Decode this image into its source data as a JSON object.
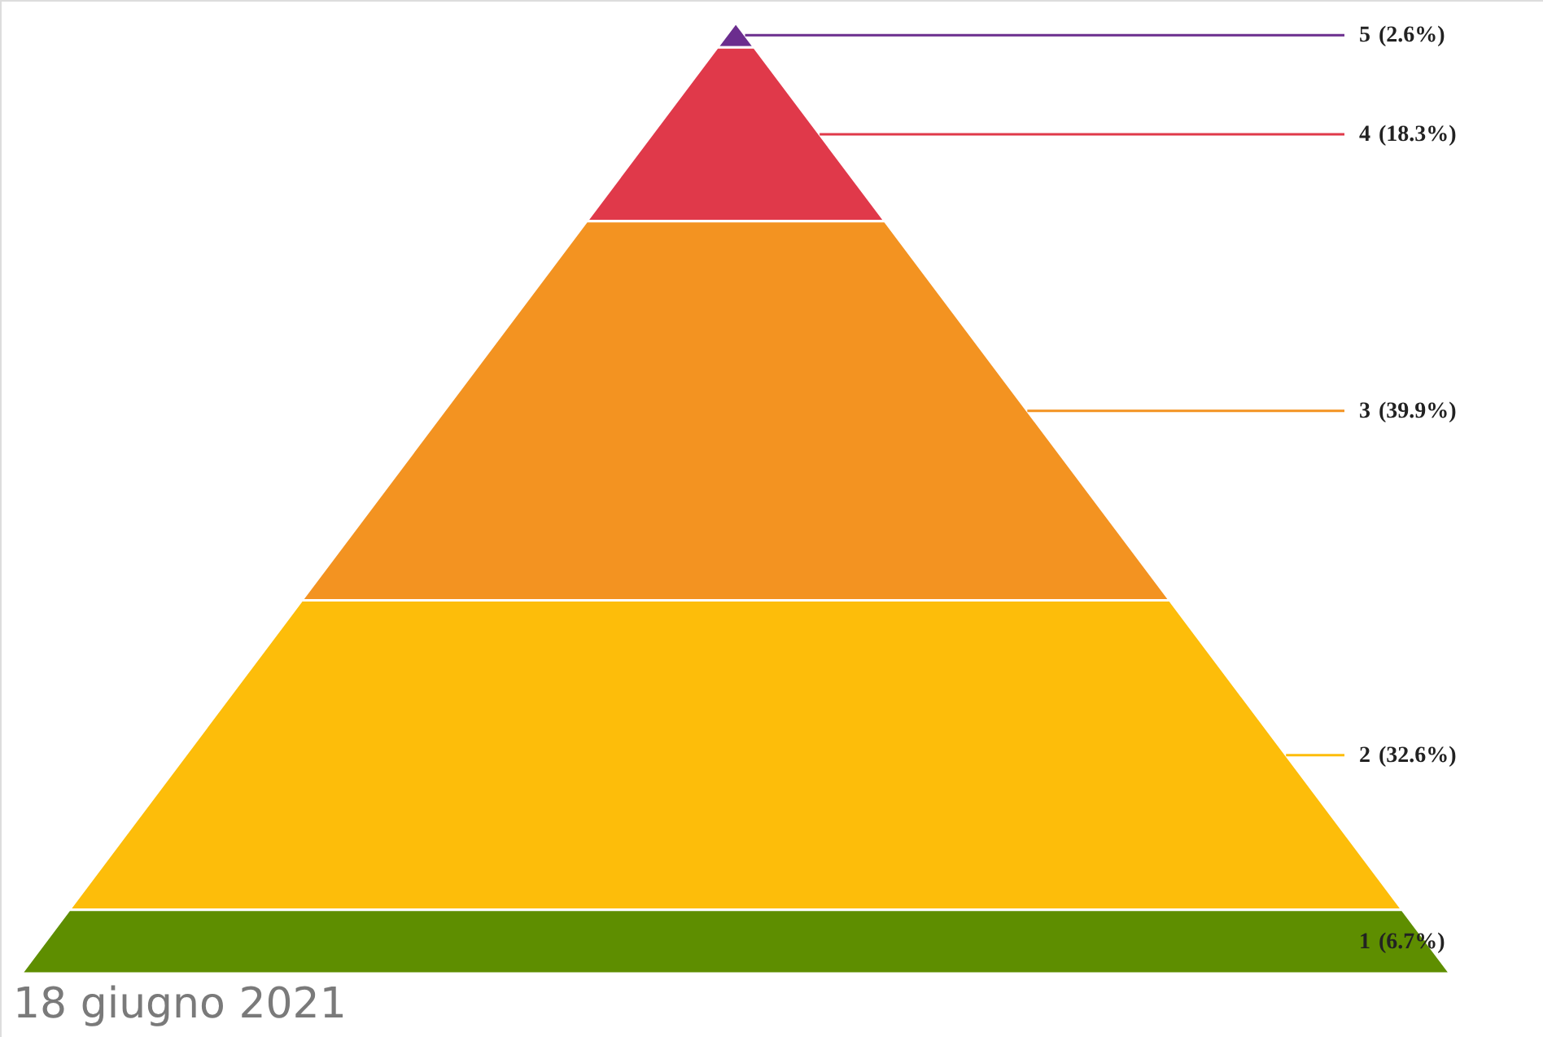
{
  "chart_data": {
    "type": "other",
    "categories": [
      "5",
      "4",
      "3",
      "2",
      "1"
    ],
    "values": [
      2.6,
      18.3,
      39.9,
      32.6,
      6.7
    ],
    "value_labels": [
      "(2.6%)",
      "(18.3%)",
      "(39.9%)",
      "(32.6%)",
      "(6.7%)"
    ],
    "colors": [
      "#6b2d8e",
      "#e0394a",
      "#f39321",
      "#fdbd0a",
      "#5e8e00"
    ],
    "annotations": [
      "18 giugno 2021"
    ]
  }
}
